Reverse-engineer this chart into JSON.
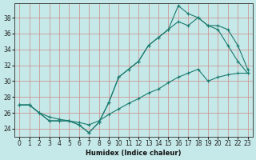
{
  "bg_color": "#c5e8e8",
  "line_color": "#1a7a6e",
  "grid_color": "#d08888",
  "xlabel": "Humidex (Indice chaleur)",
  "xlim": [
    -0.5,
    23.5
  ],
  "ylim": [
    23.0,
    39.8
  ],
  "yticks": [
    24,
    26,
    28,
    30,
    32,
    34,
    36,
    38
  ],
  "xticks": [
    0,
    1,
    2,
    3,
    4,
    5,
    6,
    7,
    8,
    9,
    10,
    11,
    12,
    13,
    14,
    15,
    16,
    17,
    18,
    19,
    20,
    21,
    22,
    23
  ],
  "s1_y": [
    27.0,
    27.0,
    26.0,
    25.5,
    25.2,
    25.0,
    24.8,
    24.5,
    25.0,
    25.8,
    26.5,
    27.2,
    27.8,
    28.5,
    29.0,
    29.8,
    30.5,
    31.0,
    31.5,
    30.0,
    30.5,
    30.8,
    31.0,
    31.0
  ],
  "s2_y": [
    27.0,
    27.0,
    26.0,
    25.0,
    25.0,
    25.0,
    24.5,
    23.5,
    24.8,
    27.3,
    30.5,
    31.5,
    32.5,
    34.5,
    35.5,
    36.5,
    39.5,
    38.5,
    38.0,
    37.0,
    36.5,
    34.5,
    32.5,
    31.0
  ],
  "s3_y": [
    27.0,
    27.0,
    26.0,
    25.0,
    25.0,
    25.0,
    24.5,
    23.5,
    24.8,
    27.3,
    30.5,
    31.5,
    32.5,
    34.5,
    35.5,
    36.5,
    37.5,
    37.0,
    38.0,
    37.0,
    37.0,
    36.5,
    34.5,
    31.5
  ]
}
